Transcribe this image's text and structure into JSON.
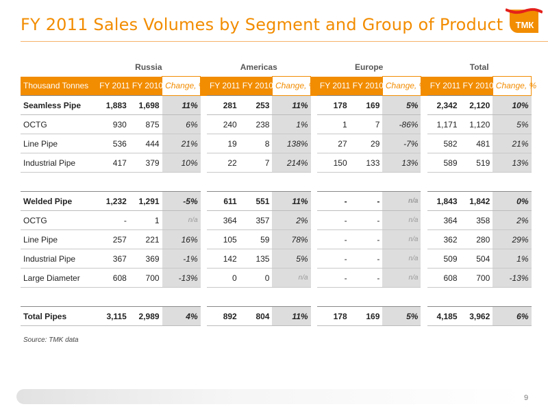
{
  "title": "FY 2011 Sales Volumes by Segment and Group of Product",
  "logo_text": "ТМК",
  "segments": [
    "Russia",
    "Americas",
    "Europe",
    "Total"
  ],
  "header": {
    "label": "Thousand Tonnes",
    "fy2011": "FY 2011",
    "fy2010": "FY 2010",
    "change": "Change, %"
  },
  "rows": [
    {
      "label": "Seamless Pipe",
      "bold": true,
      "cells": [
        "1,883",
        "1,698",
        "11%",
        "281",
        "253",
        "11%",
        "178",
        "169",
        "5%",
        "2,342",
        "2,120",
        "10%"
      ]
    },
    {
      "label": "OCTG",
      "bold": false,
      "cells": [
        "930",
        "875",
        "6%",
        "240",
        "238",
        "1%",
        "1",
        "7",
        "-86%",
        "1,171",
        "1,120",
        "5%"
      ]
    },
    {
      "label": "Line Pipe",
      "bold": false,
      "cells": [
        "536",
        "444",
        "21%",
        "19",
        "8",
        "138%",
        "27",
        "29",
        "-7%",
        "582",
        "481",
        "21%"
      ]
    },
    {
      "label": "Industrial Pipe",
      "bold": false,
      "cells": [
        "417",
        "379",
        "10%",
        "22",
        "7",
        "214%",
        "150",
        "133",
        "13%",
        "589",
        "519",
        "13%"
      ]
    },
    {
      "spacer": true
    },
    {
      "label": "Welded Pipe",
      "bold": true,
      "cells": [
        "1,232",
        "1,291",
        "-5%",
        "611",
        "551",
        "11%",
        "-",
        "-",
        "n/a",
        "1,843",
        "1,842",
        "0%"
      ]
    },
    {
      "label": "OCTG",
      "bold": false,
      "cells": [
        "-",
        "1",
        "n/a",
        "364",
        "357",
        "2%",
        "-",
        "-",
        "n/a",
        "364",
        "358",
        "2%"
      ]
    },
    {
      "label": "Line Pipe",
      "bold": false,
      "cells": [
        "257",
        "221",
        "16%",
        "105",
        "59",
        "78%",
        "-",
        "-",
        "n/a",
        "362",
        "280",
        "29%"
      ]
    },
    {
      "label": "Industrial Pipe",
      "bold": false,
      "cells": [
        "367",
        "369",
        "-1%",
        "142",
        "135",
        "5%",
        "-",
        "-",
        "n/a",
        "509",
        "504",
        "1%"
      ]
    },
    {
      "label": "Large Diameter",
      "bold": false,
      "cells": [
        "608",
        "700",
        "-13%",
        "0",
        "0",
        "n/a",
        "-",
        "-",
        "n/a",
        "608",
        "700",
        "-13%"
      ]
    },
    {
      "spacer": true
    },
    {
      "label": "Total Pipes",
      "bold": true,
      "cells": [
        "3,115",
        "2,989",
        "4%",
        "892",
        "804",
        "11%",
        "178",
        "169",
        "5%",
        "4,185",
        "3,962",
        "6%"
      ]
    }
  ],
  "source": "Source: TMK data",
  "page_number": "9",
  "colors": {
    "accent": "#f28c00",
    "logo_red": "#e4201b",
    "shade": "#dddddd"
  }
}
